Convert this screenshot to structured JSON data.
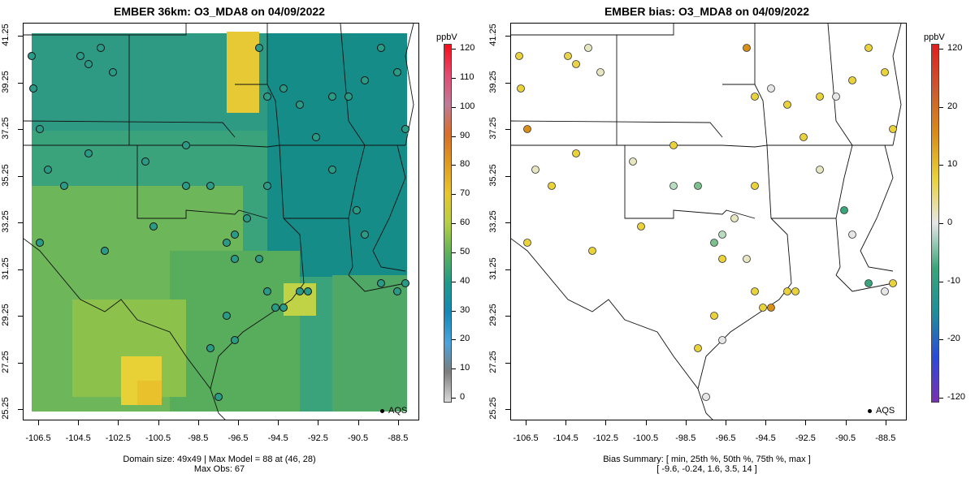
{
  "left": {
    "title": "EMBER 36km: O3_MDA8 on 04/09/2022",
    "footer_line1": "Domain size: 49x49 | Max Model = 88 at (46, 28)",
    "footer_line2": "Max Obs: 67",
    "colorbar": {
      "title": "ppbV",
      "labels": [
        "120",
        "110",
        "100",
        "90",
        "80",
        "70",
        "60",
        "50",
        "40",
        "30",
        "20",
        "10",
        "0"
      ],
      "stops": [
        "#f70d1a",
        "#e34a6f",
        "#c07a9a",
        "#d86d2a",
        "#e09b20",
        "#e8c62b",
        "#b6cf45",
        "#5fb15a",
        "#1f9a8a",
        "#1688b8",
        "#4aa4dd",
        "#7d7d7d",
        "#d9d9d9"
      ]
    },
    "legend_label": "AQS"
  },
  "right": {
    "title": "EMBER bias: O3_MDA8 on 04/09/2022",
    "footer_line1": "Bias Summary: [ min, 25th %, 50th %, 75th %, max ]",
    "footer_line2": "[ -9.6,   -0.24,   1.6,   3.5,   14 ]",
    "colorbar": {
      "title": "ppbV",
      "labels": [
        "120",
        "20",
        "10",
        "0",
        "-10",
        "-20",
        "-120"
      ],
      "stops": [
        "#e01f1f",
        "#cc5a2f",
        "#d98e17",
        "#e9d23a",
        "#e6e6e6",
        "#3aa57a",
        "#1f8e9a",
        "#2b4ad8",
        "#7a2fb3"
      ]
    },
    "legend_label": "AQS"
  },
  "axes": {
    "lat_labels": [
      "41.25",
      "39.25",
      "37.25",
      "35.25",
      "33.25",
      "31.25",
      "29.25",
      "27.25",
      "25.25"
    ],
    "lon_labels": [
      "-106.5",
      "-104.5",
      "-102.5",
      "-100.5",
      "-98.5",
      "-96.5",
      "-94.5",
      "-92.5",
      "-90.5",
      "-88.5"
    ]
  }
}
